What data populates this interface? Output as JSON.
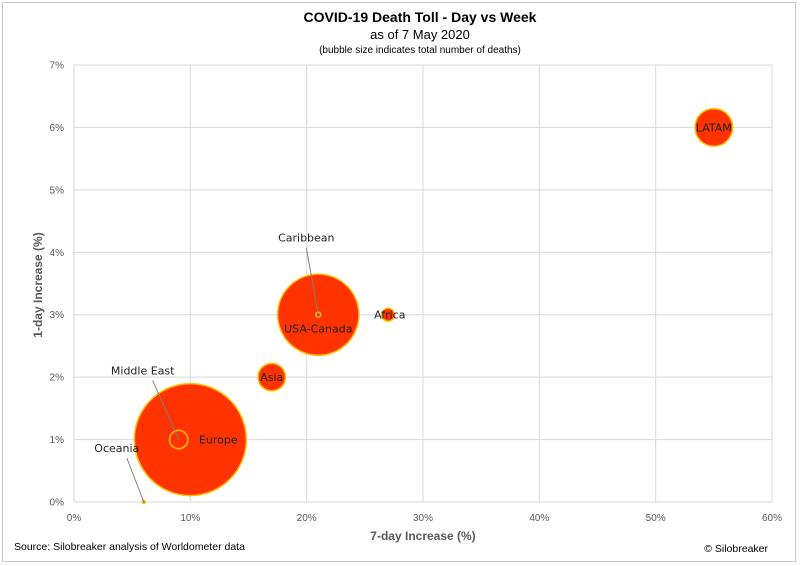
{
  "chart_data": {
    "type": "scatter",
    "title": "COVID-19 Death Toll - Day vs Week",
    "subtitle": "as of 7 May 2020",
    "note": "(bubble size indicates total number of deaths)",
    "xlabel": "7-day Increase (%)",
    "ylabel": "1-day Increase (%)",
    "xlim": [
      0,
      60
    ],
    "ylim": [
      0,
      7
    ],
    "x_ticks": [
      "0%",
      "10%",
      "20%",
      "30%",
      "40%",
      "50%",
      "60%"
    ],
    "y_ticks": [
      "0%",
      "1%",
      "2%",
      "3%",
      "4%",
      "5%",
      "6%",
      "7%"
    ],
    "grid": true,
    "bubble_color": "#ff3300",
    "bubble_outline": "#ffc000",
    "points": [
      {
        "label": "Europe",
        "x": 10,
        "y": 1,
        "size": 150000
      },
      {
        "label": "USA-Canada",
        "x": 21,
        "y": 3,
        "size": 79000
      },
      {
        "label": "Asia",
        "x": 17,
        "y": 2,
        "size": 9000
      },
      {
        "label": "LATAM",
        "x": 55,
        "y": 6,
        "size": 17000
      },
      {
        "label": "Middle East",
        "x": 9,
        "y": 1,
        "size": 4000
      },
      {
        "label": "Africa",
        "x": 27,
        "y": 3,
        "size": 2000
      },
      {
        "label": "Caribbean",
        "x": 21,
        "y": 3,
        "size": 300
      },
      {
        "label": "Oceania",
        "x": 6,
        "y": 0,
        "size": 100
      }
    ]
  },
  "footer": {
    "source": "Source: Silobreaker analysis of Worldometer data",
    "credit": "© Silobreaker"
  }
}
